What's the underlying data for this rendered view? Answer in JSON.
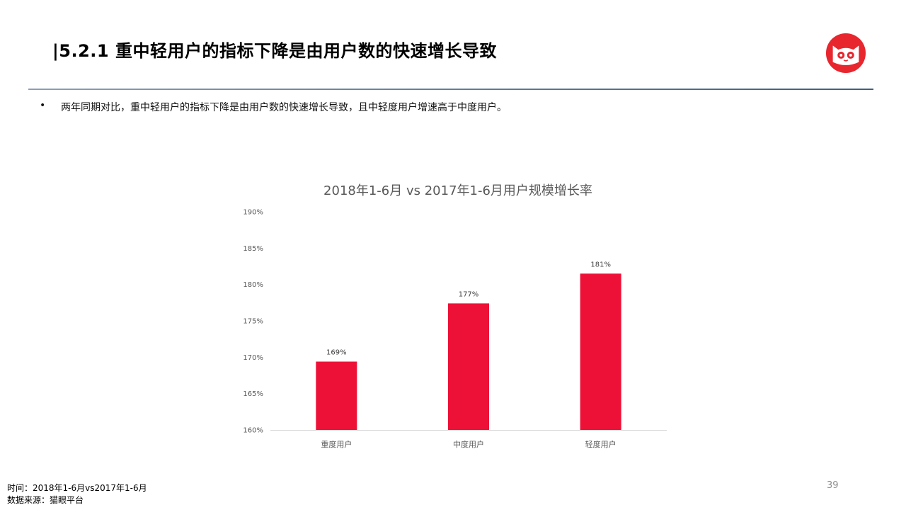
{
  "slide": {
    "title": "|5.2.1 重中轻用户的指标下降是由用户数的快速增长导致",
    "bullet": "两年同期对比，重中轻用户的指标下降是由用户数的快速增长导致，且中轻度用户增速高于中度用户。",
    "page_number": "39"
  },
  "footer": {
    "time": "时间：2018年1-6月vs2017年1-6月",
    "source": "数据来源：猫眼平台"
  },
  "colors": {
    "bar": "#ee1137",
    "logo": "#e8262e",
    "axis": "#d9d9d9",
    "text_muted": "#595959"
  },
  "chart_data": {
    "type": "bar",
    "title": "2018年1-6月 vs 2017年1-6月用户规模增长率",
    "xlabel": "",
    "ylabel": "",
    "categories": [
      "重度用户",
      "中度用户",
      "轻度用户"
    ],
    "values": [
      1.694,
      1.774,
      1.815
    ],
    "data_labels": [
      "169%",
      "177%",
      "181%"
    ],
    "ylim": [
      1.6,
      1.9
    ],
    "y_ticks": [
      1.6,
      1.65,
      1.7,
      1.75,
      1.8,
      1.85,
      1.9
    ],
    "y_tick_labels": [
      "160%",
      "165%",
      "170%",
      "175%",
      "180%",
      "185%",
      "190%"
    ],
    "grid": false,
    "legend": "none"
  }
}
